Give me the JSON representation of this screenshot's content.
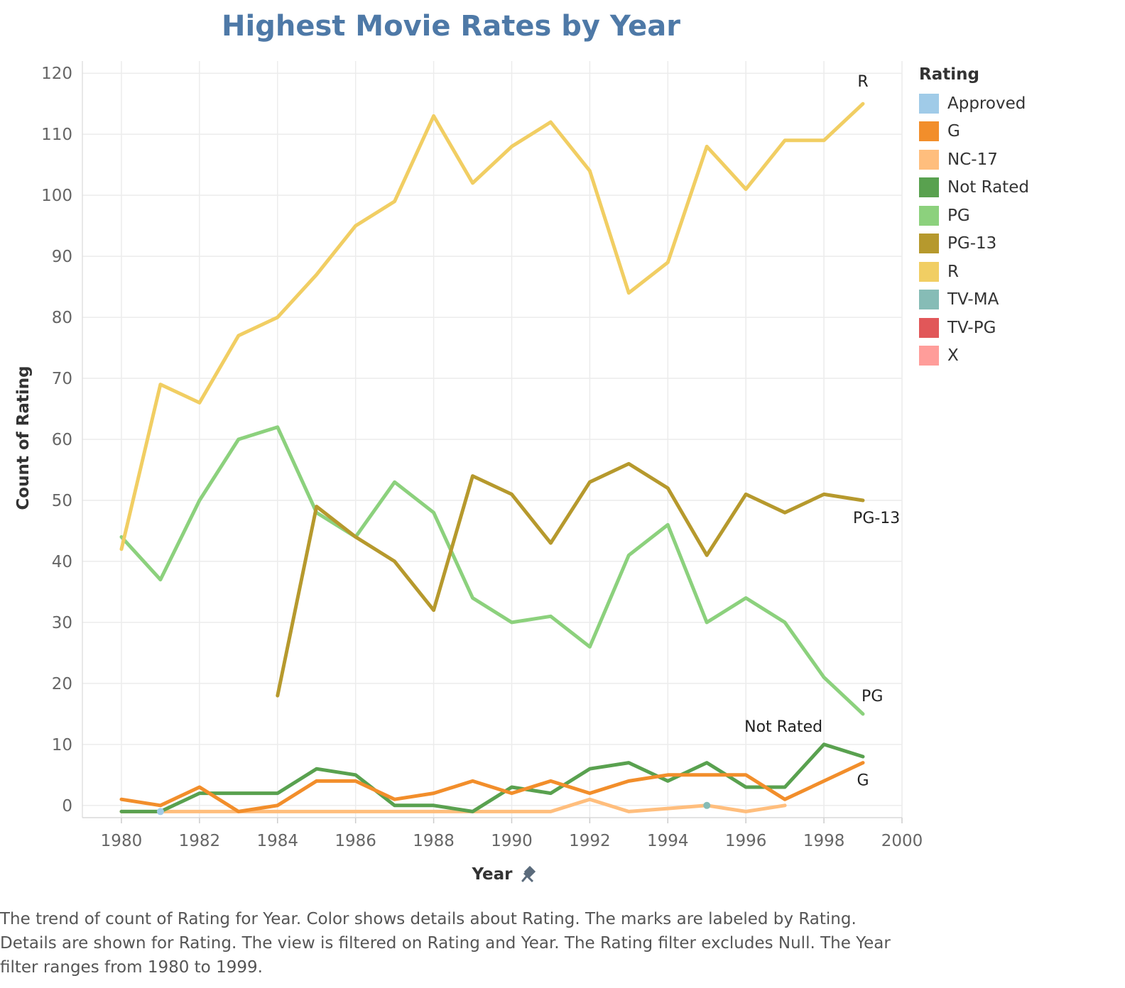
{
  "chart_data": {
    "type": "line",
    "title": "Highest Movie Rates by Year",
    "xlabel": "Year",
    "ylabel": "Count of Rating",
    "xlim": [
      1979,
      2000
    ],
    "ylim": [
      -2,
      122
    ],
    "x_ticks": [
      1980,
      1982,
      1984,
      1986,
      1988,
      1990,
      1992,
      1994,
      1996,
      1998,
      2000
    ],
    "y_ticks": [
      0,
      10,
      20,
      30,
      40,
      50,
      60,
      70,
      80,
      90,
      100,
      110,
      120
    ],
    "grid": true,
    "legend_position": "right",
    "legend_title": "Rating",
    "legend": [
      {
        "name": "Approved",
        "color": "#a0cbe8"
      },
      {
        "name": "G",
        "color": "#f28e2b"
      },
      {
        "name": "NC-17",
        "color": "#ffbe7d"
      },
      {
        "name": "Not Rated",
        "color": "#59a14f"
      },
      {
        "name": "PG",
        "color": "#8cd17d"
      },
      {
        "name": "PG-13",
        "color": "#b6992d"
      },
      {
        "name": "R",
        "color": "#f1ce63"
      },
      {
        "name": "TV-MA",
        "color": "#86bcb6"
      },
      {
        "name": "TV-PG",
        "color": "#e15759"
      },
      {
        "name": "X",
        "color": "#ff9d9a"
      }
    ],
    "series": [
      {
        "name": "NC-17",
        "color": "#ffbe7d",
        "points": [
          [
            1980,
            -1
          ],
          [
            1981,
            -1
          ],
          [
            1982,
            -1
          ],
          [
            1983,
            -1
          ],
          [
            1984,
            -1
          ],
          [
            1985,
            -1
          ],
          [
            1986,
            -1
          ],
          [
            1987,
            -1
          ],
          [
            1988,
            -1
          ],
          [
            1989,
            -1
          ],
          [
            1990,
            -1
          ],
          [
            1991,
            -1
          ],
          [
            1992,
            1
          ],
          [
            1993,
            -1
          ],
          [
            1994,
            -0.5
          ],
          [
            1995,
            0
          ],
          [
            1996,
            -1
          ],
          [
            1997,
            0
          ]
        ]
      },
      {
        "name": "Not Rated",
        "color": "#59a14f",
        "points": [
          [
            1980,
            -1
          ],
          [
            1981,
            -1
          ],
          [
            1982,
            2
          ],
          [
            1983,
            2
          ],
          [
            1984,
            2
          ],
          [
            1985,
            6
          ],
          [
            1986,
            5
          ],
          [
            1987,
            0
          ],
          [
            1988,
            0
          ],
          [
            1989,
            -1
          ],
          [
            1990,
            3
          ],
          [
            1991,
            2
          ],
          [
            1992,
            6
          ],
          [
            1993,
            7
          ],
          [
            1994,
            4
          ],
          [
            1995,
            7
          ],
          [
            1996,
            3
          ],
          [
            1997,
            3
          ],
          [
            1998,
            10
          ],
          [
            1999,
            8
          ]
        ]
      },
      {
        "name": "G",
        "color": "#f28e2b",
        "points": [
          [
            1980,
            1
          ],
          [
            1981,
            0
          ],
          [
            1982,
            3
          ],
          [
            1983,
            -1
          ],
          [
            1984,
            0
          ],
          [
            1985,
            4
          ],
          [
            1986,
            4
          ],
          [
            1987,
            1
          ],
          [
            1988,
            2
          ],
          [
            1989,
            4
          ],
          [
            1990,
            2
          ],
          [
            1991,
            4
          ],
          [
            1992,
            2
          ],
          [
            1993,
            4
          ],
          [
            1994,
            5
          ],
          [
            1995,
            5
          ],
          [
            1996,
            5
          ],
          [
            1997,
            1
          ],
          [
            1998,
            4
          ],
          [
            1999,
            7
          ]
        ]
      },
      {
        "name": "PG",
        "color": "#8cd17d",
        "points": [
          [
            1980,
            44
          ],
          [
            1981,
            37
          ],
          [
            1982,
            50
          ],
          [
            1983,
            60
          ],
          [
            1984,
            62
          ],
          [
            1985,
            48
          ],
          [
            1986,
            44
          ],
          [
            1987,
            53
          ],
          [
            1988,
            48
          ],
          [
            1989,
            34
          ],
          [
            1990,
            30
          ],
          [
            1991,
            31
          ],
          [
            1992,
            26
          ],
          [
            1993,
            41
          ],
          [
            1994,
            46
          ],
          [
            1995,
            30
          ],
          [
            1996,
            34
          ],
          [
            1997,
            30
          ],
          [
            1998,
            21
          ],
          [
            1999,
            15
          ]
        ]
      },
      {
        "name": "PG-13",
        "color": "#b6992d",
        "points": [
          [
            1984,
            18
          ],
          [
            1985,
            49
          ],
          [
            1986,
            44
          ],
          [
            1987,
            40
          ],
          [
            1988,
            32
          ],
          [
            1989,
            54
          ],
          [
            1990,
            51
          ],
          [
            1991,
            43
          ],
          [
            1992,
            53
          ],
          [
            1993,
            56
          ],
          [
            1994,
            52
          ],
          [
            1995,
            41
          ],
          [
            1996,
            51
          ],
          [
            1997,
            48
          ],
          [
            1998,
            51
          ],
          [
            1999,
            50
          ]
        ]
      },
      {
        "name": "R",
        "color": "#f1ce63",
        "points": [
          [
            1980,
            42
          ],
          [
            1981,
            69
          ],
          [
            1982,
            66
          ],
          [
            1983,
            77
          ],
          [
            1984,
            80
          ],
          [
            1985,
            87
          ],
          [
            1986,
            95
          ],
          [
            1987,
            99
          ],
          [
            1988,
            113
          ],
          [
            1989,
            102
          ],
          [
            1990,
            108
          ],
          [
            1991,
            112
          ],
          [
            1992,
            104
          ],
          [
            1993,
            84
          ],
          [
            1994,
            89
          ],
          [
            1995,
            108
          ],
          [
            1996,
            101
          ],
          [
            1997,
            109
          ],
          [
            1998,
            109
          ],
          [
            1999,
            115
          ]
        ]
      },
      {
        "name": "Approved",
        "color": "#a0cbe8",
        "points": [
          [
            1981,
            -1
          ]
        ]
      },
      {
        "name": "TV-MA",
        "color": "#86bcb6",
        "points": [
          [
            1995,
            0
          ]
        ]
      }
    ],
    "end_labels": [
      "R",
      "PG-13",
      "Not Rated",
      "PG",
      "G"
    ],
    "caption": "The trend of count of Rating for Year.  Color shows details about Rating.  The marks are labeled by Rating.  Details are shown for Rating. The view is filtered on Rating and Year. The Rating filter excludes Null. The Year filter ranges from 1980 to 1999."
  }
}
